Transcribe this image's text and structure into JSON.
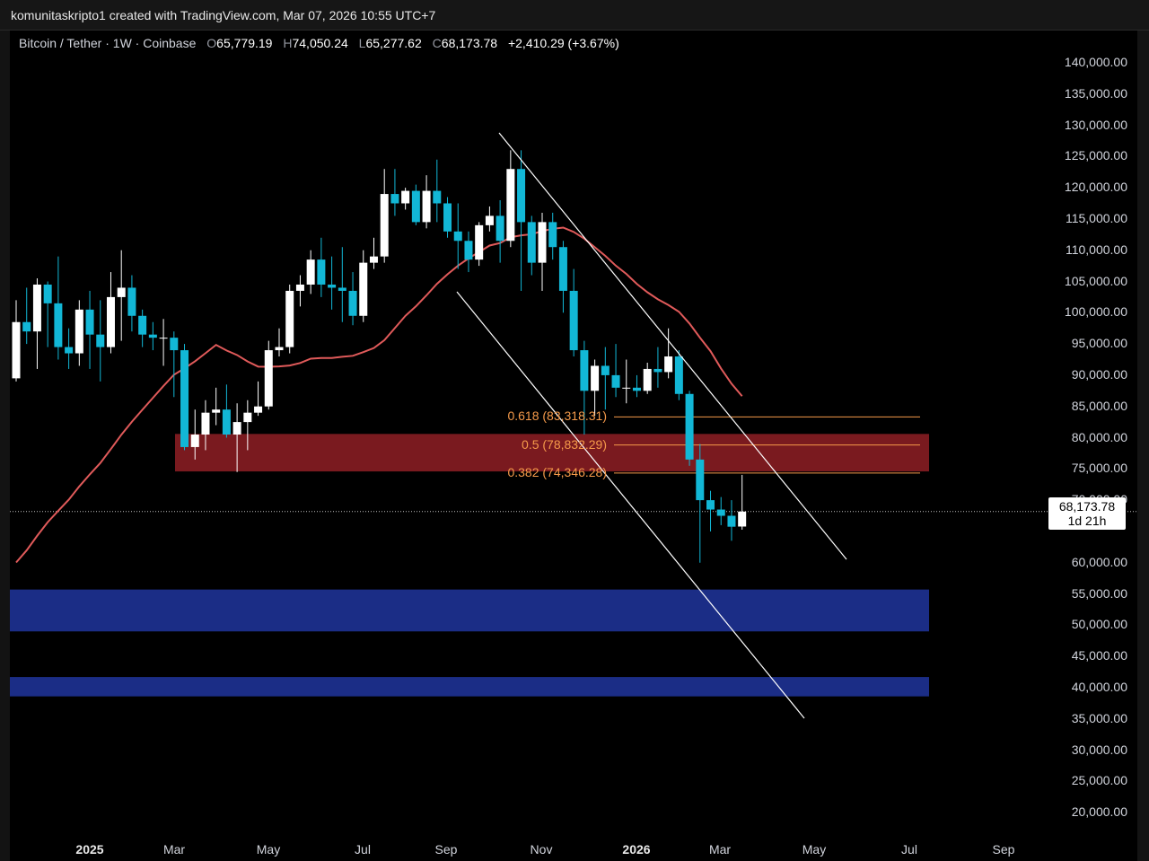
{
  "header": {
    "text": "komunitaskripto1 created with TradingView.com, Mar 07, 2026 10:55 UTC+7"
  },
  "legend": {
    "symbol": "Bitcoin / Tether · 1W · Coinbase",
    "open_label": "O",
    "open": "65,779.19",
    "high_label": "H",
    "high": "74,050.24",
    "low_label": "L",
    "low": "65,277.62",
    "close_label": "C",
    "close": "68,173.78",
    "change": "+2,410.29 (+3.67%)"
  },
  "price_axis": [
    "140,000.00",
    "135,000.00",
    "130,000.00",
    "125,000.00",
    "120,000.00",
    "115,000.00",
    "110,000.00",
    "105,000.00",
    "100,000.00",
    "95,000.00",
    "90,000.00",
    "85,000.00",
    "80,000.00",
    "75,000.00",
    "70,000.00",
    "60,000.00",
    "55,000.00",
    "50,000.00",
    "45,000.00",
    "40,000.00",
    "35,000.00",
    "30,000.00",
    "25,000.00",
    "20,000.00"
  ],
  "time_axis": [
    {
      "label": "2025",
      "year": true
    },
    {
      "label": "Mar",
      "year": false
    },
    {
      "label": "May",
      "year": false
    },
    {
      "label": "Jul",
      "year": false
    },
    {
      "label": "Sep",
      "year": false
    },
    {
      "label": "Nov",
      "year": false
    },
    {
      "label": "2026",
      "year": true
    },
    {
      "label": "Mar",
      "year": false
    },
    {
      "label": "May",
      "year": false
    },
    {
      "label": "Jul",
      "year": false
    },
    {
      "label": "Sep",
      "year": false
    }
  ],
  "last_price": {
    "value": "68,173.78",
    "countdown": "1d 21h"
  },
  "fib_levels": [
    {
      "label": "0.618 (83,318.31)",
      "price": 83318.31
    },
    {
      "label": "0.5 (78,832.29)",
      "price": 78832.29
    },
    {
      "label": "0.382 (74,346.28)",
      "price": 74346.28
    }
  ],
  "zones": [
    {
      "name": "resistance-zone",
      "from": 74600,
      "to": 80600,
      "color": "#7a1a1f"
    },
    {
      "name": "support-zone-1",
      "from": 49000,
      "to": 55700,
      "color": "#1b2d86"
    },
    {
      "name": "support-zone-2",
      "from": 38600,
      "to": 41700,
      "color": "#1b2d86"
    }
  ],
  "colors": {
    "up": "#ffffff",
    "down": "#12b7d6",
    "ma": "#e05a5a",
    "fib": "#f59a4a",
    "channel": "#ffffff"
  },
  "chart_data": {
    "type": "candlestick",
    "symbol": "BTC/USDT",
    "interval": "1W",
    "ylim": [
      17500,
      142500
    ],
    "candles": [
      {
        "o": 89500,
        "h": 102000,
        "l": 89000,
        "c": 98500
      },
      {
        "o": 98500,
        "h": 104000,
        "l": 95000,
        "c": 97000
      },
      {
        "o": 97000,
        "h": 105500,
        "l": 91000,
        "c": 104500
      },
      {
        "o": 104500,
        "h": 105000,
        "l": 94500,
        "c": 101500
      },
      {
        "o": 101500,
        "h": 109000,
        "l": 92500,
        "c": 94500
      },
      {
        "o": 94500,
        "h": 97500,
        "l": 91000,
        "c": 93500
      },
      {
        "o": 93500,
        "h": 102000,
        "l": 91500,
        "c": 100500
      },
      {
        "o": 100500,
        "h": 103500,
        "l": 91000,
        "c": 96500
      },
      {
        "o": 96500,
        "h": 102000,
        "l": 89000,
        "c": 94500
      },
      {
        "o": 94500,
        "h": 106500,
        "l": 93500,
        "c": 102500
      },
      {
        "o": 102500,
        "h": 110000,
        "l": 95500,
        "c": 104000
      },
      {
        "o": 104000,
        "h": 106000,
        "l": 97000,
        "c": 99500
      },
      {
        "o": 99500,
        "h": 100500,
        "l": 94500,
        "c": 96500
      },
      {
        "o": 96500,
        "h": 98500,
        "l": 94000,
        "c": 96000
      },
      {
        "o": 96000,
        "h": 99000,
        "l": 91500,
        "c": 96000
      },
      {
        "o": 96000,
        "h": 97000,
        "l": 86500,
        "c": 94000
      },
      {
        "o": 94000,
        "h": 95000,
        "l": 78000,
        "c": 78500
      },
      {
        "o": 78500,
        "h": 84500,
        "l": 76500,
        "c": 80500
      },
      {
        "o": 80500,
        "h": 86000,
        "l": 78000,
        "c": 84000
      },
      {
        "o": 84000,
        "h": 88000,
        "l": 82000,
        "c": 84500
      },
      {
        "o": 84500,
        "h": 88500,
        "l": 80000,
        "c": 80500
      },
      {
        "o": 80500,
        "h": 85500,
        "l": 74500,
        "c": 82500
      },
      {
        "o": 82500,
        "h": 86000,
        "l": 78000,
        "c": 84000
      },
      {
        "o": 84000,
        "h": 89000,
        "l": 83500,
        "c": 85000
      },
      {
        "o": 85000,
        "h": 95500,
        "l": 84500,
        "c": 94000
      },
      {
        "o": 94000,
        "h": 97500,
        "l": 93000,
        "c": 94500
      },
      {
        "o": 94500,
        "h": 104500,
        "l": 93500,
        "c": 103500
      },
      {
        "o": 103500,
        "h": 106000,
        "l": 101000,
        "c": 104500
      },
      {
        "o": 104500,
        "h": 110000,
        "l": 103000,
        "c": 108500
      },
      {
        "o": 108500,
        "h": 112000,
        "l": 102500,
        "c": 104500
      },
      {
        "o": 104500,
        "h": 109000,
        "l": 100500,
        "c": 104000
      },
      {
        "o": 104000,
        "h": 110500,
        "l": 98500,
        "c": 103500
      },
      {
        "o": 103500,
        "h": 106500,
        "l": 98000,
        "c": 99500
      },
      {
        "o": 99500,
        "h": 110000,
        "l": 98500,
        "c": 108000
      },
      {
        "o": 108000,
        "h": 112000,
        "l": 107000,
        "c": 109000
      },
      {
        "o": 109000,
        "h": 123000,
        "l": 108000,
        "c": 119000
      },
      {
        "o": 119000,
        "h": 123000,
        "l": 115500,
        "c": 117500
      },
      {
        "o": 117500,
        "h": 120000,
        "l": 116500,
        "c": 119500
      },
      {
        "o": 119500,
        "h": 120500,
        "l": 114000,
        "c": 114500
      },
      {
        "o": 114500,
        "h": 122000,
        "l": 113500,
        "c": 119500
      },
      {
        "o": 119500,
        "h": 124500,
        "l": 114500,
        "c": 117500
      },
      {
        "o": 117500,
        "h": 118500,
        "l": 112000,
        "c": 113000
      },
      {
        "o": 113000,
        "h": 117500,
        "l": 107000,
        "c": 111500
      },
      {
        "o": 111500,
        "h": 113000,
        "l": 106500,
        "c": 108500
      },
      {
        "o": 108500,
        "h": 114500,
        "l": 107500,
        "c": 114000
      },
      {
        "o": 114000,
        "h": 117000,
        "l": 113000,
        "c": 115500
      },
      {
        "o": 115500,
        "h": 118000,
        "l": 108000,
        "c": 111500
      },
      {
        "o": 111500,
        "h": 126000,
        "l": 110500,
        "c": 123000
      },
      {
        "o": 123000,
        "h": 126000,
        "l": 103500,
        "c": 114500
      },
      {
        "o": 114500,
        "h": 115500,
        "l": 106000,
        "c": 108000
      },
      {
        "o": 108000,
        "h": 116000,
        "l": 103500,
        "c": 114500
      },
      {
        "o": 114500,
        "h": 116000,
        "l": 108500,
        "c": 110500
      },
      {
        "o": 110500,
        "h": 111500,
        "l": 100000,
        "c": 103500
      },
      {
        "o": 103500,
        "h": 107000,
        "l": 93000,
        "c": 94000
      },
      {
        "o": 94000,
        "h": 95500,
        "l": 80500,
        "c": 87500
      },
      {
        "o": 87500,
        "h": 92500,
        "l": 83500,
        "c": 91500
      },
      {
        "o": 91500,
        "h": 94500,
        "l": 84500,
        "c": 90000
      },
      {
        "o": 90000,
        "h": 95000,
        "l": 86500,
        "c": 88000
      },
      {
        "o": 88000,
        "h": 92500,
        "l": 85500,
        "c": 88000
      },
      {
        "o": 88000,
        "h": 90000,
        "l": 86500,
        "c": 87500
      },
      {
        "o": 87500,
        "h": 92000,
        "l": 87000,
        "c": 91000
      },
      {
        "o": 91000,
        "h": 94500,
        "l": 88000,
        "c": 90500
      },
      {
        "o": 90500,
        "h": 97500,
        "l": 89500,
        "c": 93000
      },
      {
        "o": 93000,
        "h": 94000,
        "l": 86000,
        "c": 87000
      },
      {
        "o": 87000,
        "h": 87500,
        "l": 75500,
        "c": 76500
      },
      {
        "o": 76500,
        "h": 79000,
        "l": 60000,
        "c": 70000
      },
      {
        "o": 70000,
        "h": 71500,
        "l": 65000,
        "c": 68500
      },
      {
        "o": 68500,
        "h": 70500,
        "l": 66000,
        "c": 67500
      },
      {
        "o": 67500,
        "h": 70000,
        "l": 63500,
        "c": 65750
      },
      {
        "o": 65779.19,
        "h": 74050.24,
        "l": 65277.62,
        "c": 68173.78
      }
    ]
  }
}
